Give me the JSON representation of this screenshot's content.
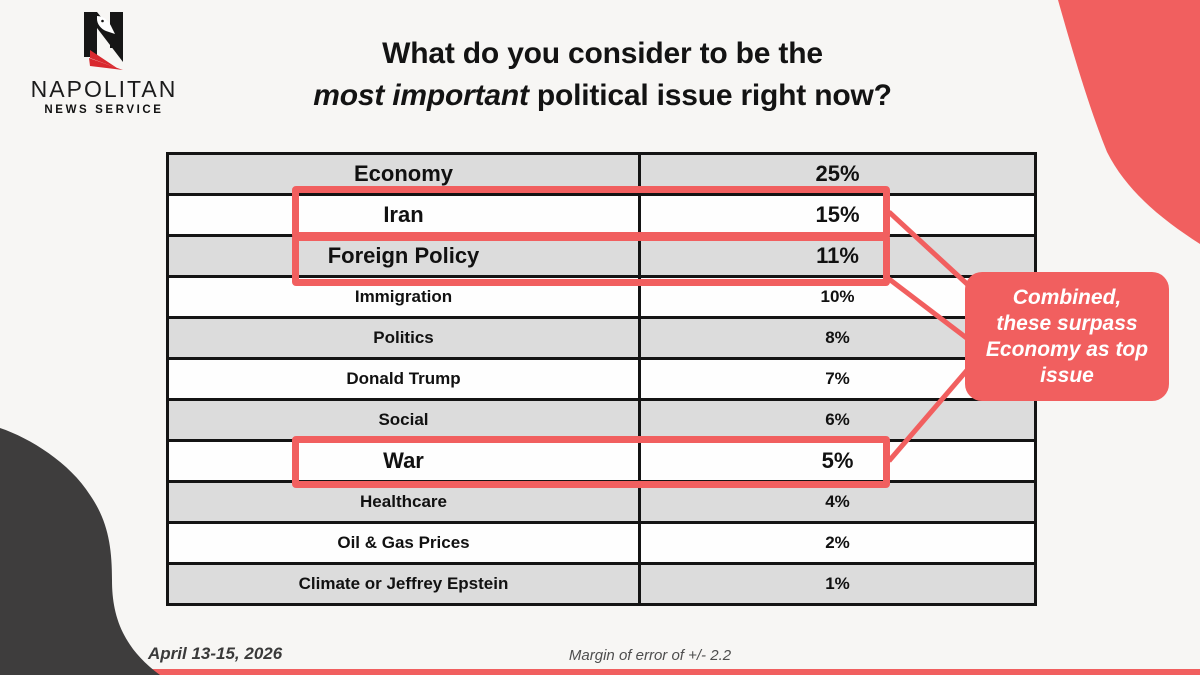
{
  "colors": {
    "accent": "#f15f5f",
    "dark_blob": "#3e3d3d",
    "row_shaded": "#dcdcdc",
    "row_plain": "#fefefe",
    "table_border": "#141414",
    "background": "#f7f6f4",
    "logo_red": "#d9292f"
  },
  "brand": {
    "name": "NAPOLITAN",
    "tagline": "NEWS SERVICE"
  },
  "title": {
    "line1": "What do you consider to be the",
    "line2_em": "most important",
    "line2_rest": " political issue right now?"
  },
  "table": {
    "rows": [
      {
        "label": "Economy",
        "value": "25%",
        "large": true,
        "highlighted": false
      },
      {
        "label": "Iran",
        "value": "15%",
        "large": true,
        "highlighted": true
      },
      {
        "label": "Foreign Policy",
        "value": "11%",
        "large": true,
        "highlighted": true
      },
      {
        "label": "Immigration",
        "value": "10%",
        "large": false,
        "highlighted": false
      },
      {
        "label": "Politics",
        "value": "8%",
        "large": false,
        "highlighted": false
      },
      {
        "label": "Donald Trump",
        "value": "7%",
        "large": false,
        "highlighted": false
      },
      {
        "label": "Social",
        "value": "6%",
        "large": false,
        "highlighted": false
      },
      {
        "label": "War",
        "value": "5%",
        "large": true,
        "highlighted": true
      },
      {
        "label": "Healthcare",
        "value": "4%",
        "large": false,
        "highlighted": false
      },
      {
        "label": "Oil & Gas Prices",
        "value": "2%",
        "large": false,
        "highlighted": false
      },
      {
        "label": "Climate or Jeffrey Epstein",
        "value": "1%",
        "large": false,
        "highlighted": false
      }
    ]
  },
  "callout": {
    "text": "Combined,\nthese surpass\nEconomy as top\nissue"
  },
  "footer": {
    "date": "April 13-15, 2026",
    "margin_of_error": "Margin of error of +/- 2.2"
  },
  "chart_data": {
    "type": "table",
    "title": "What do you consider to be the most important political issue right now?",
    "categories": [
      "Economy",
      "Iran",
      "Foreign Policy",
      "Immigration",
      "Politics",
      "Donald Trump",
      "Social",
      "War",
      "Healthcare",
      "Oil & Gas Prices",
      "Climate or Jeffrey Epstein"
    ],
    "values": [
      25,
      15,
      11,
      10,
      8,
      7,
      6,
      5,
      4,
      2,
      1
    ],
    "unit": "percent",
    "highlighted_categories": [
      "Iran",
      "Foreign Policy",
      "War"
    ],
    "annotation": "Combined, these surpass Economy as top issue",
    "date_range": "April 13-15, 2026",
    "source_note": "Margin of error of +/- 2.2",
    "legend_position": "none",
    "grid": false
  }
}
